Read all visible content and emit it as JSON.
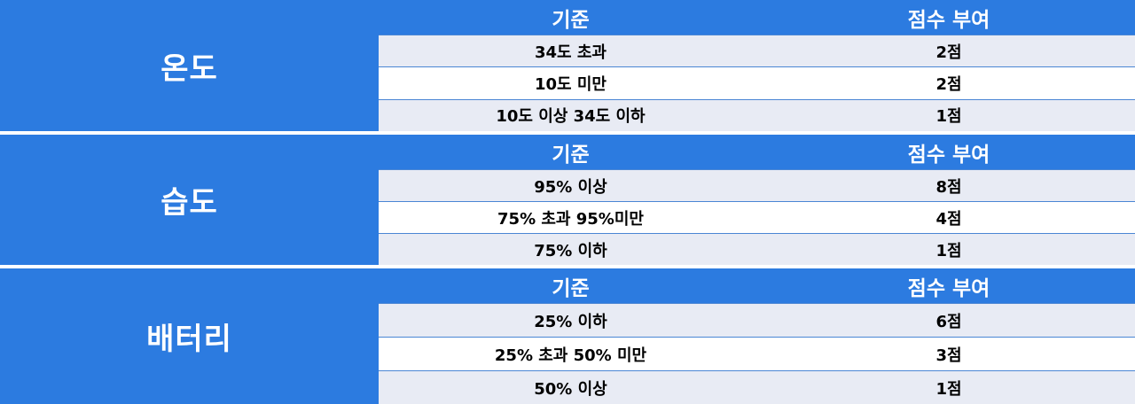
{
  "headers": {
    "criteria": "기준",
    "score": "점수 부여"
  },
  "sections": [
    {
      "label": "온도",
      "rows": [
        {
          "criteria": "34도 초과",
          "score": "2점"
        },
        {
          "criteria": "10도 미만",
          "score": "2점"
        },
        {
          "criteria": "10도 이상 34도 이하",
          "score": "1점"
        }
      ]
    },
    {
      "label": "습도",
      "rows": [
        {
          "criteria": "95% 이상",
          "score": "8점"
        },
        {
          "criteria": "75% 초과 95%미만",
          "score": "4점"
        },
        {
          "criteria": "75% 이하",
          "score": "1점"
        }
      ]
    },
    {
      "label": "배터리",
      "rows": [
        {
          "criteria": "25% 이하",
          "score": "6점"
        },
        {
          "criteria": "25% 초과 50% 미만",
          "score": "3점"
        },
        {
          "criteria": "50% 이상",
          "score": "1점"
        }
      ]
    }
  ]
}
